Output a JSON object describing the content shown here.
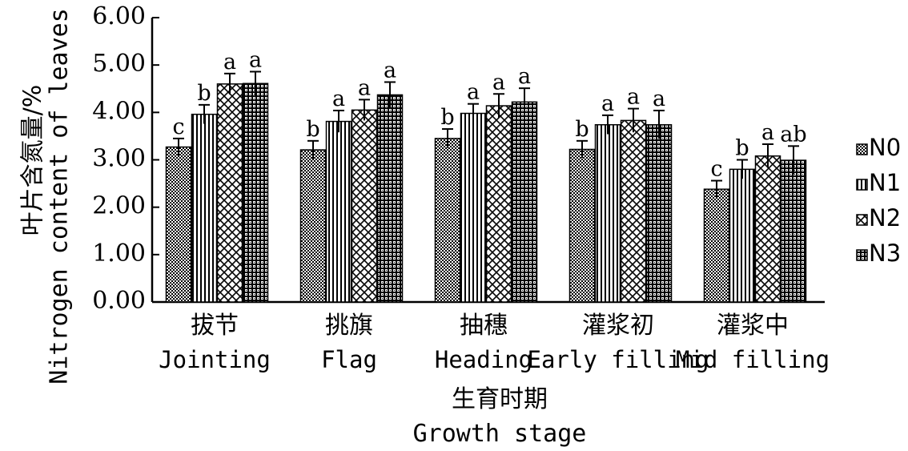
{
  "chart_data": {
    "type": "bar",
    "ylabel_cn": "叶片含氮量/%",
    "ylabel_en": "Nitrogen content of leaves",
    "xlabel_cn": "生育时期",
    "xlabel_en": "Growth stage",
    "ylim": [
      0,
      6
    ],
    "yticks": [
      "0.00",
      "1.00",
      "2.00",
      "3.00",
      "4.00",
      "5.00",
      "6.00"
    ],
    "categories_cn": [
      "拔节",
      "挑旗",
      "抽穗",
      "灌浆初",
      "灌浆中"
    ],
    "categories_en": [
      "Jointing",
      "Flag",
      "Heading",
      "Early filling",
      "Mid filling"
    ],
    "series": [
      {
        "name": "N0",
        "pattern": "dots",
        "values": [
          3.27,
          3.21,
          3.45,
          3.22,
          2.38
        ],
        "errors": [
          0.18,
          0.19,
          0.2,
          0.18,
          0.18
        ],
        "labels": [
          "c",
          "b",
          "b",
          "b",
          "c"
        ]
      },
      {
        "name": "N1",
        "pattern": "vlines",
        "values": [
          3.96,
          3.81,
          3.98,
          3.74,
          2.8
        ],
        "errors": [
          0.2,
          0.23,
          0.2,
          0.2,
          0.2
        ],
        "labels": [
          "b",
          "a",
          "a",
          "a",
          "b"
        ]
      },
      {
        "name": "N2",
        "pattern": "crosshatch",
        "values": [
          4.6,
          4.05,
          4.14,
          3.83,
          3.08
        ],
        "errors": [
          0.22,
          0.22,
          0.25,
          0.25,
          0.25
        ],
        "labels": [
          "a",
          "a",
          "a",
          "a",
          "a"
        ]
      },
      {
        "name": "N3",
        "pattern": "grid",
        "values": [
          4.61,
          4.37,
          4.22,
          3.74,
          2.99
        ],
        "errors": [
          0.25,
          0.27,
          0.29,
          0.3,
          0.3
        ],
        "labels": [
          "a",
          "a",
          "a",
          "a",
          "ab"
        ]
      }
    ],
    "legend_position": "right",
    "grid": false
  }
}
